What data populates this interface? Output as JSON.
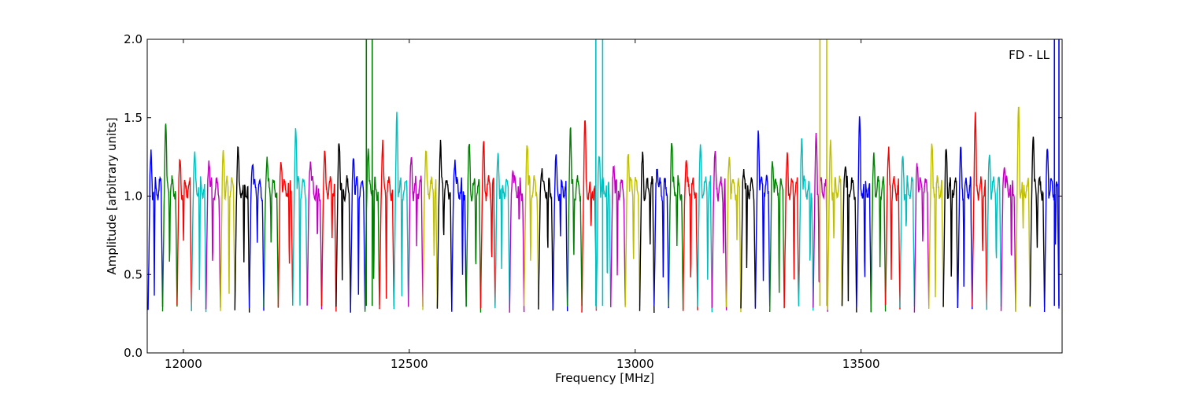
{
  "chart_data": {
    "type": "line",
    "title": "",
    "xlabel": "Frequency [MHz]",
    "ylabel": "Amplitude [arbitrary units]",
    "xlim": [
      11920,
      13945
    ],
    "ylim": [
      0.0,
      2.0
    ],
    "xticks": [
      12000,
      12500,
      13000,
      13500
    ],
    "yticks": [
      0.0,
      0.5,
      1.0,
      1.5,
      2.0
    ],
    "ytick_labels": [
      "0.0",
      "0.5",
      "1.0",
      "1.5",
      "2.0"
    ],
    "annotation": "FD - LL",
    "annotation_position": "top-right",
    "grid": false,
    "colors": [
      "#0000ff",
      "#008000",
      "#ff0000",
      "#00bfbf",
      "#bf00bf",
      "#bfbf00",
      "#000000"
    ],
    "channel_width_mhz": 32,
    "channels": [
      {
        "start": 11922,
        "color": "#0000ff",
        "peak": 1.26
      },
      {
        "start": 11954,
        "color": "#008000",
        "peak": 1.46
      },
      {
        "start": 11986,
        "color": "#ff0000",
        "peak": 1.2
      },
      {
        "start": 12018,
        "color": "#00bfbf",
        "peak": 1.22
      },
      {
        "start": 12050,
        "color": "#bf00bf",
        "peak": 1.28
      },
      {
        "start": 12082,
        "color": "#bfbf00",
        "peak": 1.28
      },
      {
        "start": 12114,
        "color": "#000000",
        "peak": 1.29
      },
      {
        "start": 12146,
        "color": "#0000ff",
        "peak": 1.24
      },
      {
        "start": 12178,
        "color": "#008000",
        "peak": 1.25
      },
      {
        "start": 12210,
        "color": "#ff0000",
        "peak": 1.25
      },
      {
        "start": 12242,
        "color": "#00bfbf",
        "peak": 1.5
      },
      {
        "start": 12274,
        "color": "#bf00bf",
        "peak": 1.25
      },
      {
        "start": 12306,
        "color": "#ff0000",
        "peak": 1.26
      },
      {
        "start": 12338,
        "color": "#000000",
        "peak": 1.41
      },
      {
        "start": 12370,
        "color": "#0000ff",
        "peak": 1.28
      },
      {
        "start": 12402,
        "color": "#008000",
        "peak": 1.3
      },
      {
        "start": 12434,
        "color": "#ff0000",
        "peak": 1.32
      },
      {
        "start": 12466,
        "color": "#00bfbf",
        "peak": 1.52
      },
      {
        "start": 12498,
        "color": "#bf00bf",
        "peak": 1.2
      },
      {
        "start": 12530,
        "color": "#bfbf00",
        "peak": 1.25
      },
      {
        "start": 12562,
        "color": "#000000",
        "peak": 1.33
      },
      {
        "start": 12594,
        "color": "#0000ff",
        "peak": 1.27
      },
      {
        "start": 12626,
        "color": "#008000",
        "peak": 1.28
      },
      {
        "start": 12658,
        "color": "#ff0000",
        "peak": 1.29
      },
      {
        "start": 12690,
        "color": "#00bfbf",
        "peak": 1.26
      },
      {
        "start": 12722,
        "color": "#bf00bf",
        "peak": 1.21
      },
      {
        "start": 12754,
        "color": "#bfbf00",
        "peak": 1.4
      },
      {
        "start": 12786,
        "color": "#000000",
        "peak": 1.21
      },
      {
        "start": 12818,
        "color": "#0000ff",
        "peak": 1.2
      },
      {
        "start": 12850,
        "color": "#008000",
        "peak": 1.48
      },
      {
        "start": 12882,
        "color": "#ff0000",
        "peak": 1.45
      },
      {
        "start": 12914,
        "color": "#00bfbf",
        "peak": 1.29
      },
      {
        "start": 12946,
        "color": "#bf00bf",
        "peak": 1.25
      },
      {
        "start": 12978,
        "color": "#bfbf00",
        "peak": 1.33
      },
      {
        "start": 13010,
        "color": "#000000",
        "peak": 1.22
      },
      {
        "start": 13042,
        "color": "#0000ff",
        "peak": 1.23
      },
      {
        "start": 13074,
        "color": "#008000",
        "peak": 1.36
      },
      {
        "start": 13106,
        "color": "#ff0000",
        "peak": 1.26
      },
      {
        "start": 13138,
        "color": "#00bfbf",
        "peak": 1.25
      },
      {
        "start": 13170,
        "color": "#bf00bf",
        "peak": 1.24
      },
      {
        "start": 13202,
        "color": "#bfbf00",
        "peak": 1.25
      },
      {
        "start": 13234,
        "color": "#000000",
        "peak": 1.22
      },
      {
        "start": 13266,
        "color": "#0000ff",
        "peak": 1.44
      },
      {
        "start": 13298,
        "color": "#008000",
        "peak": 1.24
      },
      {
        "start": 13330,
        "color": "#ff0000",
        "peak": 1.2
      },
      {
        "start": 13362,
        "color": "#00bfbf",
        "peak": 1.42
      },
      {
        "start": 13394,
        "color": "#bf00bf",
        "peak": 1.35
      },
      {
        "start": 13426,
        "color": "#bfbf00",
        "peak": 1.31
      },
      {
        "start": 13458,
        "color": "#000000",
        "peak": 1.25
      },
      {
        "start": 13490,
        "color": "#0000ff",
        "peak": 1.45
      },
      {
        "start": 13522,
        "color": "#008000",
        "peak": 1.22
      },
      {
        "start": 13554,
        "color": "#ff0000",
        "peak": 1.24
      },
      {
        "start": 13586,
        "color": "#00bfbf",
        "peak": 1.23
      },
      {
        "start": 13618,
        "color": "#bf00bf",
        "peak": 1.22
      },
      {
        "start": 13650,
        "color": "#bfbf00",
        "peak": 1.29
      },
      {
        "start": 13682,
        "color": "#000000",
        "peak": 1.26
      },
      {
        "start": 13714,
        "color": "#0000ff",
        "peak": 1.26
      },
      {
        "start": 13746,
        "color": "#ff0000",
        "peak": 1.48
      },
      {
        "start": 13778,
        "color": "#00bfbf",
        "peak": 1.24
      },
      {
        "start": 13810,
        "color": "#bf00bf",
        "peak": 1.22
      },
      {
        "start": 13842,
        "color": "#bfbf00",
        "peak": 1.55
      },
      {
        "start": 13874,
        "color": "#000000",
        "peak": 1.4
      },
      {
        "start": 13906,
        "color": "#0000ff",
        "peak": 1.3
      }
    ],
    "spikes": [
      {
        "x": 12405,
        "color": "#008000",
        "ymax": 2.0
      },
      {
        "x": 12418,
        "color": "#008000",
        "ymax": 2.0
      },
      {
        "x": 12913,
        "color": "#00bfbf",
        "ymax": 2.0
      },
      {
        "x": 12928,
        "color": "#00bfbf",
        "ymax": 2.0
      },
      {
        "x": 13409,
        "color": "#bfbf00",
        "ymax": 2.0
      },
      {
        "x": 13424,
        "color": "#bfbf00",
        "ymax": 2.0
      },
      {
        "x": 13928,
        "color": "#0000ff",
        "ymax": 2.0
      },
      {
        "x": 13938,
        "color": "#0000ff",
        "ymax": 2.0
      }
    ]
  }
}
